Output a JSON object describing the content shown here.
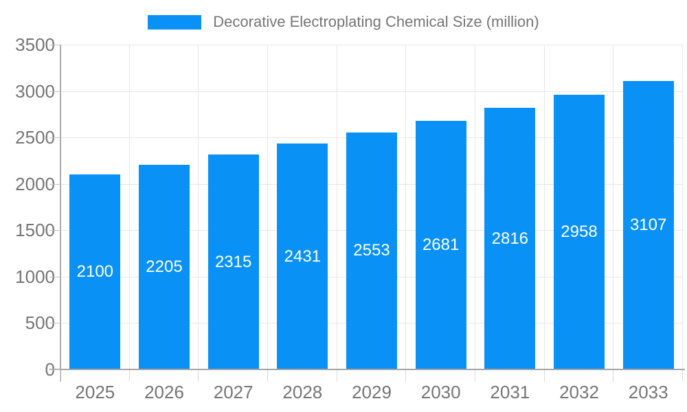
{
  "legend": {
    "label": "Decorative Electroplating Chemical Size (million)",
    "swatch_color": "#0991f5"
  },
  "chart_data": {
    "type": "bar",
    "title": "Decorative Electroplating Chemical Size (million)",
    "categories": [
      "2025",
      "2026",
      "2027",
      "2028",
      "2029",
      "2030",
      "2031",
      "2032",
      "2033"
    ],
    "values": [
      2100,
      2205,
      2315,
      2431,
      2553,
      2681,
      2816,
      2958,
      3107
    ],
    "xlabel": "",
    "ylabel": "",
    "ylim": [
      0,
      3500
    ],
    "yticks": [
      0,
      500,
      1000,
      1500,
      2000,
      2500,
      3000,
      3500
    ],
    "grid": true,
    "legend_position": "top",
    "value_labels": "inside-center"
  },
  "colors": {
    "bar": "#0991f5",
    "gridline": "#e6e6e6",
    "axis_line": "#a3a3a3",
    "tick_text": "#757575",
    "value_label_text": "#ffffff",
    "background": "#ffffff"
  }
}
